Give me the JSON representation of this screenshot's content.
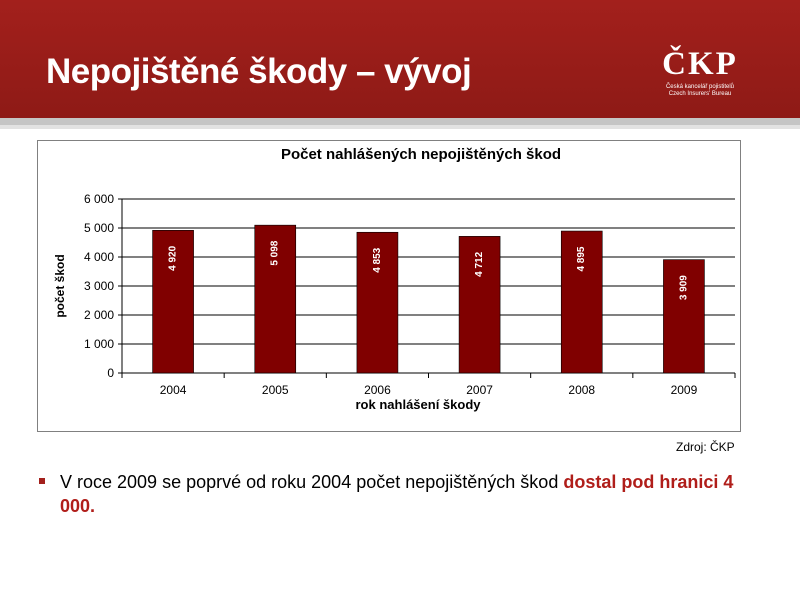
{
  "slide": {
    "title": "Nepojištěné škody – vývoj",
    "source": "Zdroj: ČKP",
    "bullet": {
      "text": "V roce 2009 se poprvé od roku 2004 počet nepojištěných škod ",
      "highlight": "dostal pod hranici 4 000."
    }
  },
  "logo": {
    "name": "ČKP",
    "line1": "Česká kancelář pojistitelů",
    "line2": "Czech Insurers' Bureau"
  },
  "colors": {
    "brand": "#a3201c",
    "bar": "#800000",
    "highlight": "#b01e1a"
  },
  "chart_data": {
    "type": "bar",
    "title": "Počet nahlášených nepojištěných škod",
    "xlabel": "rok nahlášení škody",
    "ylabel": "počet škod",
    "categories": [
      "2004",
      "2005",
      "2006",
      "2007",
      "2008",
      "2009"
    ],
    "values": [
      4920,
      5098,
      4853,
      4712,
      4895,
      3909
    ],
    "data_labels": [
      "4 920",
      "5 098",
      "4 853",
      "4 712",
      "4 895",
      "3 909"
    ],
    "ylim": [
      0,
      6000
    ],
    "yticks": [
      0,
      1000,
      2000,
      3000,
      4000,
      5000,
      6000
    ],
    "ytick_labels": [
      "0",
      "1 000",
      "2 000",
      "3 000",
      "4 000",
      "5 000",
      "6 000"
    ],
    "grid": true,
    "legend": "none"
  }
}
